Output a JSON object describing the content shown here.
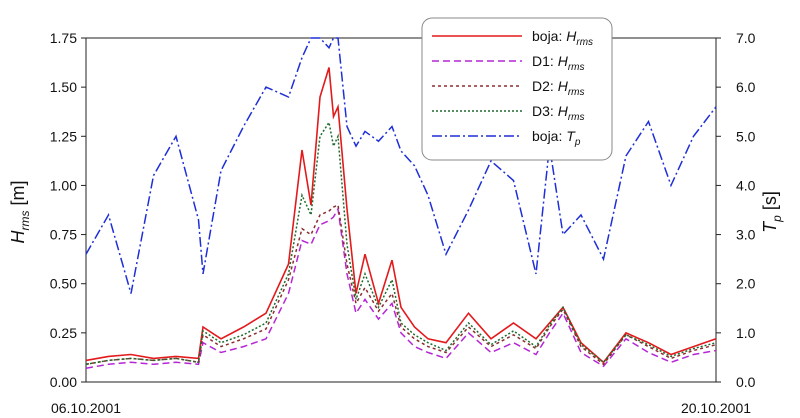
{
  "chart_data": {
    "type": "line",
    "x_start_label": "06.10.2001",
    "x_end_label": "20.10.2001",
    "x_range": [
      "06.10.2001",
      "20.10.2001"
    ],
    "left_axis": {
      "label_main": "H",
      "label_sub": "rms",
      "label_unit": " [m]",
      "ylim": [
        0,
        1.75
      ],
      "ticks": [
        "0.00",
        "0.25",
        "0.50",
        "0.75",
        "1.00",
        "1.25",
        "1.50",
        "1.75"
      ]
    },
    "right_axis": {
      "label_main": "T",
      "label_sub": "p",
      "label_unit": " [s]",
      "ylim": [
        0,
        7
      ],
      "ticks": [
        "0.0",
        "1.0",
        "2.0",
        "3.0",
        "4.0",
        "5.0",
        "6.0",
        "7.0"
      ]
    },
    "legend": {
      "placement": "top-right",
      "entries": [
        {
          "label": "boja: ",
          "sub_main": "H",
          "sub": "rms"
        },
        {
          "label": "D1: ",
          "sub_main": "H",
          "sub": "rms"
        },
        {
          "label": "D2: ",
          "sub_main": "H",
          "sub": "rms"
        },
        {
          "label": "D3: ",
          "sub_main": "H",
          "sub": "rms"
        },
        {
          "label": "boja: ",
          "sub_main": "T",
          "sub": "p"
        }
      ]
    },
    "x_days": [
      0,
      0.5,
      1,
      1.5,
      2,
      2.5,
      2.6,
      3,
      3.5,
      4,
      4.5,
      4.8,
      5,
      5.2,
      5.4,
      5.5,
      5.6,
      5.8,
      6,
      6.2,
      6.5,
      6.8,
      7,
      7.3,
      7.6,
      8,
      8.5,
      9,
      9.5,
      10,
      10.3,
      10.6,
      11,
      11.5,
      12,
      12.5,
      13,
      13.5,
      14
    ],
    "series": [
      {
        "name": "boja: Hrms",
        "axis": "left",
        "color": "#e31a1c",
        "dash": "",
        "values": [
          0.11,
          0.13,
          0.14,
          0.12,
          0.13,
          0.12,
          0.28,
          0.22,
          0.28,
          0.35,
          0.6,
          1.18,
          0.9,
          1.45,
          1.6,
          1.35,
          1.4,
          0.88,
          0.45,
          0.65,
          0.4,
          0.62,
          0.38,
          0.28,
          0.22,
          0.2,
          0.35,
          0.22,
          0.3,
          0.22,
          0.3,
          0.38,
          0.2,
          0.1,
          0.25,
          0.2,
          0.14,
          0.18,
          0.22
        ]
      },
      {
        "name": "D1: Hrms",
        "axis": "left",
        "color": "#b526d4",
        "dash": "7,4",
        "values": [
          0.07,
          0.09,
          0.1,
          0.09,
          0.1,
          0.09,
          0.2,
          0.15,
          0.18,
          0.22,
          0.45,
          0.72,
          0.7,
          0.8,
          0.82,
          0.84,
          0.88,
          0.55,
          0.35,
          0.42,
          0.32,
          0.4,
          0.25,
          0.18,
          0.15,
          0.12,
          0.25,
          0.15,
          0.2,
          0.14,
          0.25,
          0.35,
          0.15,
          0.08,
          0.22,
          0.15,
          0.1,
          0.14,
          0.16
        ]
      },
      {
        "name": "D2: Hrms",
        "axis": "left",
        "color": "#8b2e2e",
        "dash": "3,3",
        "values": [
          0.09,
          0.11,
          0.12,
          0.11,
          0.12,
          0.1,
          0.24,
          0.18,
          0.22,
          0.27,
          0.52,
          0.78,
          0.75,
          0.85,
          0.87,
          0.89,
          0.9,
          0.6,
          0.4,
          0.48,
          0.36,
          0.45,
          0.28,
          0.22,
          0.18,
          0.15,
          0.28,
          0.18,
          0.24,
          0.17,
          0.28,
          0.37,
          0.18,
          0.09,
          0.24,
          0.18,
          0.12,
          0.16,
          0.19
        ]
      },
      {
        "name": "D3: Hrms",
        "axis": "left",
        "color": "#1e6b2e",
        "dash": "2,2",
        "values": [
          0.09,
          0.11,
          0.12,
          0.11,
          0.12,
          0.1,
          0.26,
          0.2,
          0.24,
          0.3,
          0.55,
          0.95,
          0.85,
          1.25,
          1.32,
          1.2,
          1.25,
          0.7,
          0.42,
          0.55,
          0.38,
          0.52,
          0.3,
          0.24,
          0.2,
          0.16,
          0.3,
          0.19,
          0.26,
          0.18,
          0.29,
          0.38,
          0.19,
          0.1,
          0.24,
          0.19,
          0.13,
          0.17,
          0.2
        ]
      },
      {
        "name": "boja: Tp",
        "axis": "right",
        "color": "#1f2fd8",
        "dash": "10,3,2,3",
        "values": [
          2.6,
          3.4,
          1.8,
          4.2,
          5.0,
          3.3,
          2.2,
          4.3,
          5.2,
          6.0,
          5.8,
          6.6,
          7.5,
          7.6,
          6.8,
          7.4,
          7.0,
          5.2,
          4.8,
          5.1,
          4.9,
          5.2,
          4.7,
          4.4,
          3.8,
          2.6,
          3.5,
          4.5,
          4.1,
          2.2,
          4.8,
          3.0,
          3.4,
          2.5,
          4.6,
          5.3,
          4.0,
          5.0,
          5.6
        ]
      }
    ]
  }
}
